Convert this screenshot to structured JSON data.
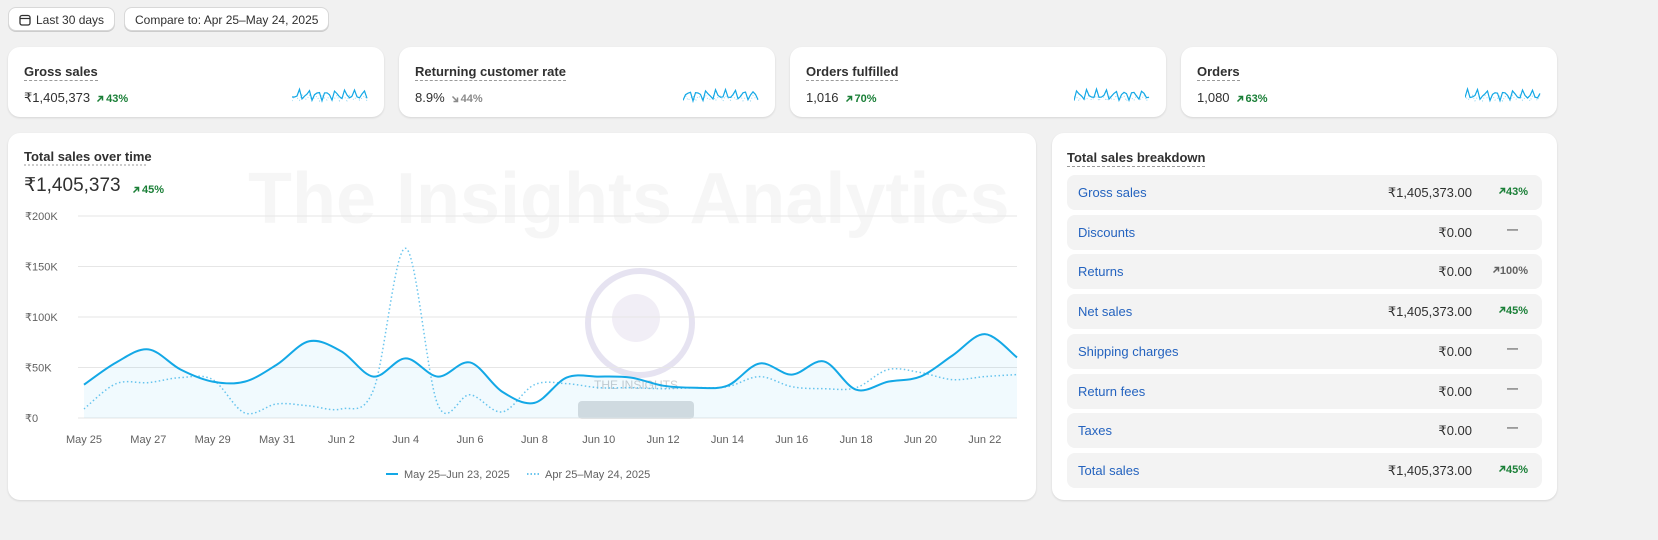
{
  "toolbar": {
    "date_range": "Last 30 days",
    "compare": "Compare to: Apr 25–May 24, 2025"
  },
  "metrics": [
    {
      "title": "Gross sales",
      "value": "₹1,405,373",
      "change": "43%",
      "trend": "up",
      "color": "#1a7f37"
    },
    {
      "title": "Returning customer rate",
      "value": "8.9%",
      "change": "44%",
      "trend": "down",
      "color": "#8a8a8a"
    },
    {
      "title": "Orders fulfilled",
      "value": "1,016",
      "change": "70%",
      "trend": "up",
      "color": "#1a7f37"
    },
    {
      "title": "Orders",
      "value": "1,080",
      "change": "63%",
      "trend": "up",
      "color": "#1a7f37"
    }
  ],
  "chart_data": {
    "type": "line",
    "title": "Total sales over time",
    "total": "₹1,405,373",
    "change": "45%",
    "trend": "up",
    "change_color": "#1a7f37",
    "watermark": "The Insights Analytics",
    "watermark_logo": "THE INSIGHTS",
    "categories": [
      "May 25",
      null,
      "May 27",
      null,
      "May 29",
      null,
      "May 31",
      null,
      "Jun 2",
      null,
      "Jun 4",
      null,
      "Jun 6",
      null,
      "Jun 8",
      null,
      "Jun 10",
      null,
      "Jun 12",
      null,
      "Jun 14",
      null,
      "Jun 16",
      null,
      "Jun 18",
      null,
      "Jun 20",
      null,
      "Jun 22",
      null
    ],
    "series": [
      {
        "name": "May 25–Jun 23, 2025",
        "color": "#13a8e6",
        "style": "solid",
        "values": [
          33000,
          55000,
          68000,
          48000,
          36000,
          36000,
          53000,
          76000,
          66000,
          41000,
          59000,
          41000,
          55000,
          26000,
          15000,
          40000,
          41000,
          40000,
          32000,
          30000,
          32000,
          54000,
          43000,
          56000,
          28000,
          36000,
          41000,
          62000,
          83000,
          60000
        ]
      },
      {
        "name": "Apr 25–May 24, 2025",
        "color": "#6cc6ee",
        "style": "dotted",
        "values": [
          9000,
          34000,
          35000,
          40000,
          38000,
          5000,
          14000,
          12000,
          9000,
          28000,
          168000,
          13000,
          23000,
          6000,
          33000,
          34000,
          30000,
          30000,
          29000,
          30000,
          31000,
          41000,
          31000,
          29000,
          30000,
          48000,
          45000,
          38000,
          41000,
          43000
        ]
      }
    ],
    "ylim": [
      0,
      200000
    ],
    "yticks": [
      {
        "value": 0,
        "label": "₹0"
      },
      {
        "value": 50000,
        "label": "₹50K"
      },
      {
        "value": 100000,
        "label": "₹100K"
      },
      {
        "value": 150000,
        "label": "₹150K"
      },
      {
        "value": 200000,
        "label": "₹200K"
      }
    ],
    "grid": true
  },
  "breakdown": {
    "title": "Total sales breakdown",
    "rows": [
      {
        "label": "Gross sales",
        "value": "₹1,405,373.00",
        "change": "43%",
        "trend": "up",
        "color": "#1a7f37"
      },
      {
        "label": "Discounts",
        "value": "₹0.00",
        "change": "—"
      },
      {
        "label": "Returns",
        "value": "₹0.00",
        "change": "100%",
        "trend": "up",
        "color": "#616161"
      },
      {
        "label": "Net sales",
        "value": "₹1,405,373.00",
        "change": "45%",
        "trend": "up",
        "color": "#1a7f37"
      },
      {
        "label": "Shipping charges",
        "value": "₹0.00",
        "change": "—"
      },
      {
        "label": "Return fees",
        "value": "₹0.00",
        "change": "—"
      },
      {
        "label": "Taxes",
        "value": "₹0.00",
        "change": "—"
      },
      {
        "label": "Total sales",
        "value": "₹1,405,373.00",
        "change": "45%",
        "trend": "up",
        "color": "#1a7f37"
      }
    ]
  }
}
